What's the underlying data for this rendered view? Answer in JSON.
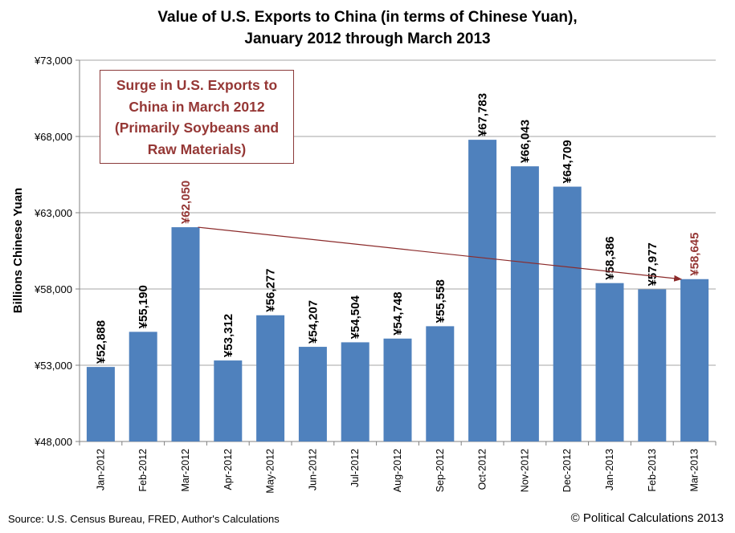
{
  "chart_data": {
    "type": "bar",
    "title": "Value of U.S. Exports to China (in terms of Chinese Yuan),\nJanuary 2012 through March 2013",
    "ylabel": "Billions Chinese Yuan",
    "xlabel": "",
    "ylim": [
      48000,
      73000
    ],
    "yticks": [
      48000,
      53000,
      58000,
      63000,
      68000,
      73000
    ],
    "ytick_labels": [
      "¥48,000",
      "¥53,000",
      "¥58,000",
      "¥63,000",
      "¥68,000",
      "¥73,000"
    ],
    "grid": true,
    "categories": [
      "Jan-2012",
      "Feb-2012",
      "Mar-2012",
      "Apr-2012",
      "May-2012",
      "Jun-2012",
      "Jul-2012",
      "Aug-2012",
      "Sep-2012",
      "Oct-2012",
      "Nov-2012",
      "Dec-2012",
      "Jan-2013",
      "Feb-2013",
      "Mar-2013"
    ],
    "values": [
      52888,
      55190,
      62050,
      53312,
      56277,
      54207,
      54504,
      54748,
      55558,
      67783,
      66043,
      64709,
      58386,
      57977,
      58645
    ],
    "data_labels": [
      "¥52,888",
      "¥55,190",
      "¥62,050",
      "¥53,312",
      "¥56,277",
      "¥54,207",
      "¥54,504",
      "¥54,748",
      "¥55,558",
      "¥67,783",
      "¥66,043",
      "¥64,709",
      "¥58,386",
      "¥57,977",
      "¥58,645"
    ],
    "highlighted_labels": [
      2,
      14
    ],
    "bar_color": "#4f81bd",
    "highlight_color": "#953735",
    "arrow": {
      "from": "Mar-2012",
      "to": "Mar-2013",
      "color": "#8b2a2a"
    },
    "annotation": "Surge in U.S. Exports to\nChina in March 2012\n(Primarily Soybeans and\nRaw Materials)"
  },
  "footer": {
    "source": "Source: U.S. Census Bureau, FRED, Author's Calculations",
    "copyright": "© Political Calculations 2013"
  }
}
